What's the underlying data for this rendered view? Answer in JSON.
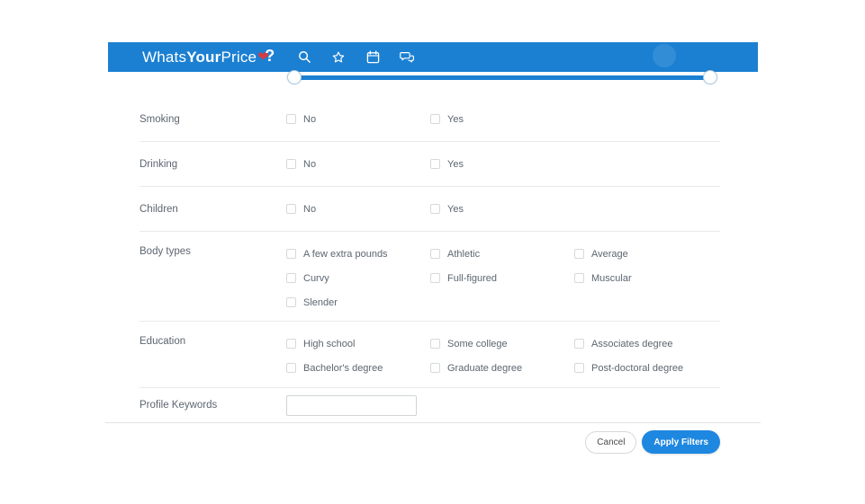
{
  "header": {
    "logo": {
      "part1": "Whats",
      "part2": "Your",
      "part3": "Price",
      "heart_glyph": "❤",
      "qmark_glyph": "?"
    },
    "icons": [
      {
        "name": "search-icon"
      },
      {
        "name": "star-icon"
      },
      {
        "name": "calendar-icon"
      },
      {
        "name": "chat-icon"
      }
    ]
  },
  "slider": {
    "type": "range",
    "handles": 2,
    "track_color": "#1c80d2"
  },
  "filters": {
    "rows": [
      {
        "label": "Smoking",
        "kind": "yn",
        "options": [
          "No",
          "Yes"
        ]
      },
      {
        "label": "Drinking",
        "kind": "yn",
        "options": [
          "No",
          "Yes"
        ]
      },
      {
        "label": "Children",
        "kind": "yn",
        "options": [
          "No",
          "Yes"
        ]
      },
      {
        "label": "Body types",
        "kind": "body",
        "options": [
          "A few extra pounds",
          "Athletic",
          "Average",
          "Curvy",
          "Full-figured",
          "Muscular",
          "Slender"
        ]
      },
      {
        "label": "Education",
        "kind": "edu",
        "options": [
          "High school",
          "Some college",
          "Associates degree",
          "Bachelor's degree",
          "Graduate degree",
          "Post-doctoral degree"
        ]
      }
    ],
    "checkbox_state": "unchecked"
  },
  "profile_keywords": {
    "label": "Profile Keywords",
    "value": "",
    "placeholder": ""
  },
  "footer": {
    "cancel_label": "Cancel",
    "apply_label": "Apply Filters"
  },
  "colors": {
    "header_blue": "#1c80d2",
    "apply_blue": "#1e87e0",
    "logo_heart_red": "#d63a45",
    "text_gray": "#5c6670",
    "divider": "#e9e9e9",
    "checkbox_border": "#d4d9dc"
  }
}
